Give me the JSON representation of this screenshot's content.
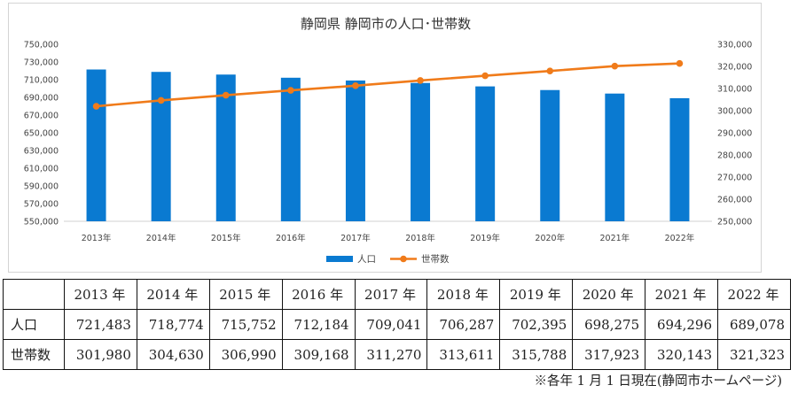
{
  "chart_data": {
    "type": "bar+line",
    "title": "静岡県 静岡市の人口･世帯数",
    "categories": [
      "2013年",
      "2014年",
      "2015年",
      "2016年",
      "2017年",
      "2018年",
      "2019年",
      "2020年",
      "2021年",
      "2022年"
    ],
    "series": [
      {
        "name": "人口",
        "type": "bar",
        "axis": "left",
        "color": "#0a7ad1",
        "values": [
          721483,
          718774,
          715752,
          712184,
          709041,
          706287,
          702395,
          698275,
          694296,
          689078
        ]
      },
      {
        "name": "世帯数",
        "type": "line",
        "axis": "right",
        "color": "#f07b1a",
        "values": [
          301980,
          304630,
          306990,
          309168,
          311270,
          313611,
          315788,
          317923,
          320143,
          321323
        ]
      }
    ],
    "y_left": {
      "min": 550000,
      "max": 750000,
      "step": 20000
    },
    "y_right": {
      "min": 250000,
      "max": 330000,
      "step": 10000
    },
    "legend_position": "bottom-center",
    "grid": false
  },
  "table": {
    "header": [
      "",
      "2013 年",
      "2014 年",
      "2015 年",
      "2016 年",
      "2017 年",
      "2018 年",
      "2019 年",
      "2020 年",
      "2021 年",
      "2022 年"
    ],
    "rows": [
      {
        "label": "人口",
        "values": [
          "721,483",
          "718,774",
          "715,752",
          "712,184",
          "709,041",
          "706,287",
          "702,395",
          "698,275",
          "694,296",
          "689,078"
        ]
      },
      {
        "label": "世帯数",
        "values": [
          "301,980",
          "304,630",
          "306,990",
          "309,168",
          "311,270",
          "313,611",
          "315,788",
          "317,923",
          "320,143",
          "321,323"
        ]
      }
    ]
  },
  "footnote": "※各年 1 月 1 日現在(静岡市ホームページ)"
}
